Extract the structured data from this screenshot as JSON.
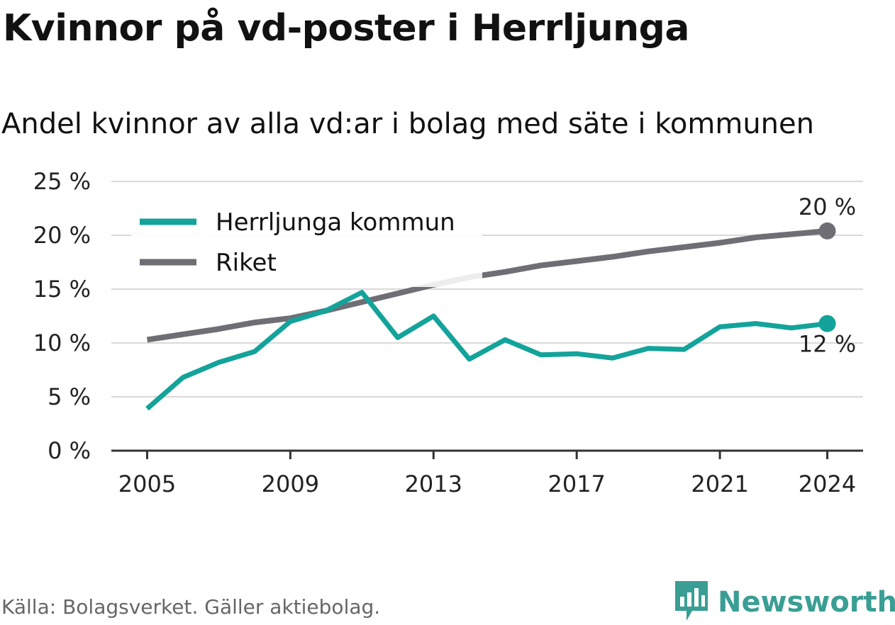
{
  "title": "Kvinnor på vd-poster i Herrljunga",
  "subtitle": "Andel kvinnor av alla vd:ar i bolag med säte i kommunen",
  "source": "Källa: Bolagsverket. Gäller aktiebolag.",
  "brand": {
    "name": "Newsworthy",
    "icon": "bar-chart-logo-icon",
    "color": "#3a9e94"
  },
  "colors": {
    "herrljunga": "#13a39a",
    "riket": "#6f6e75",
    "grid": "#d9d9d9",
    "axis": "#333333"
  },
  "chart_data": {
    "type": "line",
    "x": [
      2005,
      2006,
      2007,
      2008,
      2009,
      2010,
      2011,
      2012,
      2013,
      2014,
      2015,
      2016,
      2017,
      2018,
      2019,
      2020,
      2021,
      2022,
      2023,
      2024
    ],
    "xticks": [
      "2005",
      "2009",
      "2013",
      "2017",
      "2021",
      "2024"
    ],
    "yticks": [
      "0 %",
      "5 %",
      "10 %",
      "15 %",
      "20 %",
      "25 %"
    ],
    "ylim": [
      0,
      25
    ],
    "grid": true,
    "legend": "top-left",
    "series": [
      {
        "name": "Herrljunga kommun",
        "color": "#13a39a",
        "values": [
          3.9,
          6.8,
          8.2,
          9.2,
          12.0,
          13.0,
          14.7,
          10.5,
          12.5,
          8.5,
          10.3,
          8.9,
          9.0,
          8.6,
          9.5,
          9.4,
          11.5,
          11.8,
          11.4,
          11.8
        ],
        "end_label": "12 %"
      },
      {
        "name": "Riket",
        "color": "#6f6e75",
        "values": [
          10.3,
          10.8,
          11.3,
          11.9,
          12.3,
          13.0,
          13.8,
          14.6,
          15.4,
          16.1,
          16.6,
          17.2,
          17.6,
          18.0,
          18.5,
          18.9,
          19.3,
          19.8,
          20.1,
          20.4
        ],
        "end_label": "20 %"
      }
    ]
  }
}
